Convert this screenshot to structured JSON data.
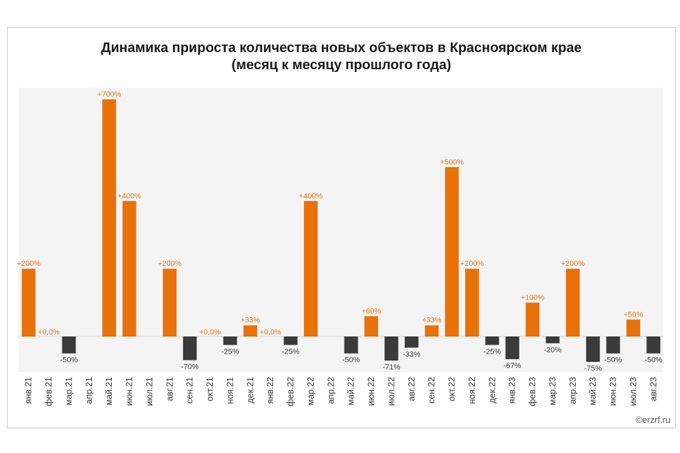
{
  "chart_data": {
    "type": "bar",
    "title_lines": [
      "Динамика прироста количества новых объектов в Красноярском крае",
      "(месяц к месяцу прошлого года)"
    ],
    "categories": [
      "янв.21",
      "фев.21",
      "мар.21",
      "апр.21",
      "май.21",
      "июн.21",
      "июл.21",
      "авг.21",
      "сен.21",
      "окт.21",
      "ноя.21",
      "дек.21",
      "янв.22",
      "фев.22",
      "мар.22",
      "апр.22",
      "май.22",
      "июн.22",
      "июл.22",
      "авг.22",
      "сен.22",
      "окт.22",
      "ноя.22",
      "дек.22",
      "янв.23",
      "фев.23",
      "мар.23",
      "апр.23",
      "май.23",
      "июн.23",
      "июл.23",
      "авг.23"
    ],
    "values": [
      200,
      0,
      -50,
      null,
      700,
      400,
      null,
      200,
      -70,
      0,
      -25,
      33,
      0,
      -25,
      400,
      null,
      -50,
      60,
      -71,
      -33,
      33,
      500,
      200,
      -25,
      -67,
      100,
      -20,
      200,
      -75,
      -50,
      50,
      -50
    ],
    "labels": [
      "+200%",
      "+0,0%",
      "-50%",
      "",
      "+700%",
      "+400%",
      "",
      "+200%",
      "-70%",
      "+0,0%",
      "-25%",
      "+33%",
      "+0,0%",
      "-25%",
      "+400%",
      "",
      "-50%",
      "+60%",
      "-71%",
      "-33%",
      "+33%",
      "+500%",
      "+200%",
      "-25%",
      "-67%",
      "+100%",
      "-20%",
      "+200%",
      "-75%",
      "-50%",
      "+50%",
      "-50%"
    ],
    "colors": {
      "positive": "#e8710a",
      "negative": "#3a3a3a",
      "plot_background": "#f4f4f4"
    },
    "ylim": [
      -125,
      725
    ],
    "grid": false,
    "legend": "none",
    "copyright": "©erzrf.ru"
  }
}
